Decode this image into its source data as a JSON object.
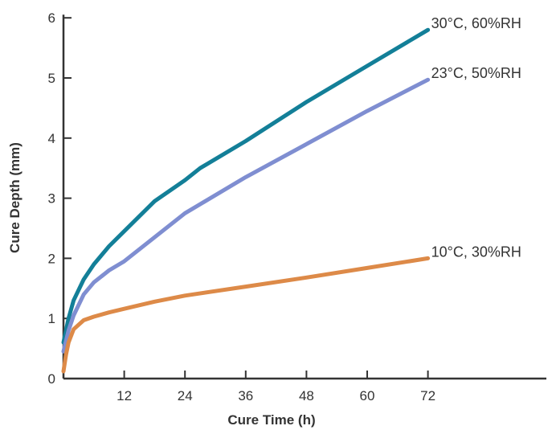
{
  "chart_data": {
    "type": "line",
    "title": "",
    "xlabel": "Cure Time (h)",
    "ylabel": "Cure Depth (mm)",
    "xlim": [
      0,
      72
    ],
    "ylim": [
      0,
      6
    ],
    "x_ticks": [
      12,
      24,
      36,
      48,
      60,
      72
    ],
    "y_ticks": [
      0,
      1,
      2,
      3,
      4,
      5,
      6
    ],
    "grid": false,
    "legend": "labels at line ends",
    "series": [
      {
        "name": "30°C, 60%RH",
        "color": "#137f98",
        "points": [
          [
            0,
            0.6
          ],
          [
            1,
            1.0
          ],
          [
            2,
            1.3
          ],
          [
            4,
            1.65
          ],
          [
            6,
            1.9
          ],
          [
            9,
            2.2
          ],
          [
            12,
            2.45
          ],
          [
            18,
            2.95
          ],
          [
            24,
            3.3
          ],
          [
            27,
            3.5
          ],
          [
            36,
            3.95
          ],
          [
            48,
            4.6
          ],
          [
            60,
            5.2
          ],
          [
            72,
            5.8
          ]
        ]
      },
      {
        "name": "23°C, 50%RH",
        "color": "#7f8ed1",
        "points": [
          [
            0,
            0.45
          ],
          [
            1,
            0.8
          ],
          [
            2,
            1.05
          ],
          [
            4,
            1.4
          ],
          [
            6,
            1.6
          ],
          [
            9,
            1.8
          ],
          [
            12,
            1.95
          ],
          [
            18,
            2.35
          ],
          [
            24,
            2.75
          ],
          [
            36,
            3.35
          ],
          [
            48,
            3.9
          ],
          [
            60,
            4.45
          ],
          [
            72,
            4.97
          ]
        ]
      },
      {
        "name": "10°C, 30%RH",
        "color": "#dd8a48",
        "points": [
          [
            0,
            0.12
          ],
          [
            0.5,
            0.4
          ],
          [
            1,
            0.6
          ],
          [
            2,
            0.82
          ],
          [
            4,
            0.97
          ],
          [
            6,
            1.03
          ],
          [
            9,
            1.1
          ],
          [
            12,
            1.16
          ],
          [
            18,
            1.28
          ],
          [
            24,
            1.38
          ],
          [
            36,
            1.53
          ],
          [
            48,
            1.68
          ],
          [
            60,
            1.84
          ],
          [
            72,
            2.0
          ]
        ]
      }
    ]
  }
}
